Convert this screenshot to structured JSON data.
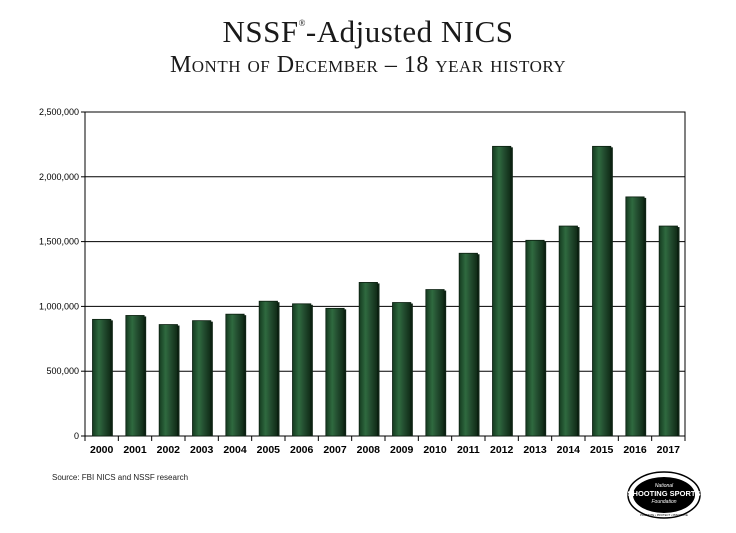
{
  "title": {
    "main_a": "NSSF",
    "reg": "®",
    "main_b": "-Adjusted NICS",
    "subtitle": "Month of December – 18 year history"
  },
  "source": "Source: FBI NICS and NSSF research",
  "logo": {
    "line1": "National",
    "line2": "SHOOTING SPORTS",
    "line3": "Foundation",
    "tagline": "PROMOTE • PROTECT • PRESERVE"
  },
  "chart_data": {
    "type": "bar",
    "categories": [
      "2000",
      "2001",
      "2002",
      "2003",
      "2004",
      "2005",
      "2006",
      "2007",
      "2008",
      "2009",
      "2010",
      "2011",
      "2012",
      "2013",
      "2014",
      "2015",
      "2016",
      "2017"
    ],
    "values": [
      900000,
      930000,
      860000,
      890000,
      940000,
      1040000,
      1020000,
      985000,
      1185000,
      1030000,
      1130000,
      1410000,
      2235000,
      1510000,
      1620000,
      2235000,
      1845000,
      1620000
    ],
    "ylim": [
      0,
      2500000
    ],
    "yticks": [
      0,
      500000,
      1000000,
      1500000,
      2000000,
      2500000
    ],
    "ytick_labels": [
      "0",
      "500,000",
      "1,000,000",
      "1,500,000",
      "2,000,000",
      "2,500,000"
    ],
    "grid": true,
    "colors": {
      "bar": "#1f4a2b",
      "bar_light": "#3f7a4f",
      "bar_shadow": "#0e2414",
      "grid": "#000000"
    }
  }
}
